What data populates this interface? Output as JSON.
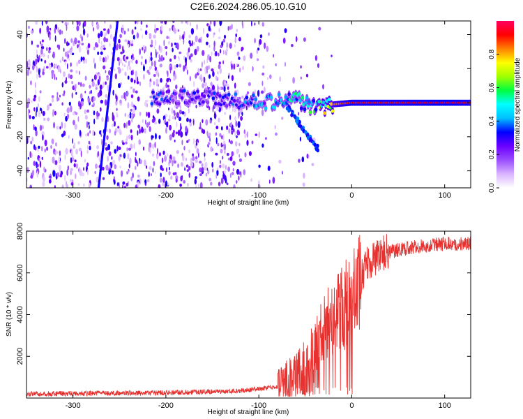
{
  "title": "C2E6.2024.286.05.10.G10",
  "chart_data": [
    {
      "type": "heatmap",
      "xlabel": "Height of straight line (km)",
      "ylabel": "Frequency (Hz)",
      "xlim": [
        -350,
        128
      ],
      "ylim": [
        -50,
        48
      ],
      "xticks": [
        -300,
        -200,
        -100,
        0,
        100
      ],
      "yticks": [
        -40,
        -20,
        0,
        20,
        40
      ],
      "colorbar": {
        "label": "Normalized spectral amplitude",
        "range": [
          0.0,
          1.0
        ],
        "ticks": [
          0.0,
          0.2,
          0.4,
          0.6,
          0.8
        ],
        "colormap": [
          "#ffffff",
          "#d9b3ff",
          "#9b4dff",
          "#6a00ff",
          "#0000ff",
          "#00bfff",
          "#00ffff",
          "#00ff40",
          "#a0ff00",
          "#ffff00",
          "#ff8000",
          "#ff0000",
          "#ff0060"
        ]
      },
      "ridge": [
        {
          "x": -210,
          "f": 3,
          "a": 0.35
        },
        {
          "x": -160,
          "f": 3,
          "a": 0.3
        },
        {
          "x": -120,
          "f": 1,
          "a": 0.35
        },
        {
          "x": -90,
          "f": 0,
          "a": 0.45
        },
        {
          "x": -60,
          "f": 2,
          "a": 0.5
        },
        {
          "x": -40,
          "f": -3,
          "a": 0.55
        },
        {
          "x": -30,
          "f": -3,
          "a": 0.75
        },
        {
          "x": -20,
          "f": -1,
          "a": 0.8
        },
        {
          "x": 0,
          "f": 0,
          "a": 0.9
        },
        {
          "x": 50,
          "f": 0,
          "a": 0.9
        },
        {
          "x": 100,
          "f": 0,
          "a": 0.95
        },
        {
          "x": 128,
          "f": 0,
          "a": 0.9
        }
      ]
    },
    {
      "type": "line",
      "xlabel": "Height of straight line (km)",
      "ylabel": "SNR (10 * v/v)",
      "xlim": [
        -350,
        128
      ],
      "ylim": [
        0,
        8000
      ],
      "xticks": [
        -300,
        -200,
        -100,
        0,
        100
      ],
      "yticks": [
        2000,
        4000,
        6000,
        8000
      ],
      "color": "#e8302e",
      "profile": [
        {
          "x": -350,
          "y": 200
        },
        {
          "x": -200,
          "y": 250
        },
        {
          "x": -120,
          "y": 350
        },
        {
          "x": -80,
          "y": 550
        },
        {
          "x": -60,
          "y": 900
        },
        {
          "x": -45,
          "y": 1600
        },
        {
          "x": -35,
          "y": 2800
        },
        {
          "x": -25,
          "y": 3500
        },
        {
          "x": -15,
          "y": 4200
        },
        {
          "x": 0,
          "y": 4800
        },
        {
          "x": 15,
          "y": 6300
        },
        {
          "x": 30,
          "y": 6900
        },
        {
          "x": 60,
          "y": 7200
        },
        {
          "x": 100,
          "y": 7400
        },
        {
          "x": 128,
          "y": 7400
        }
      ]
    }
  ]
}
